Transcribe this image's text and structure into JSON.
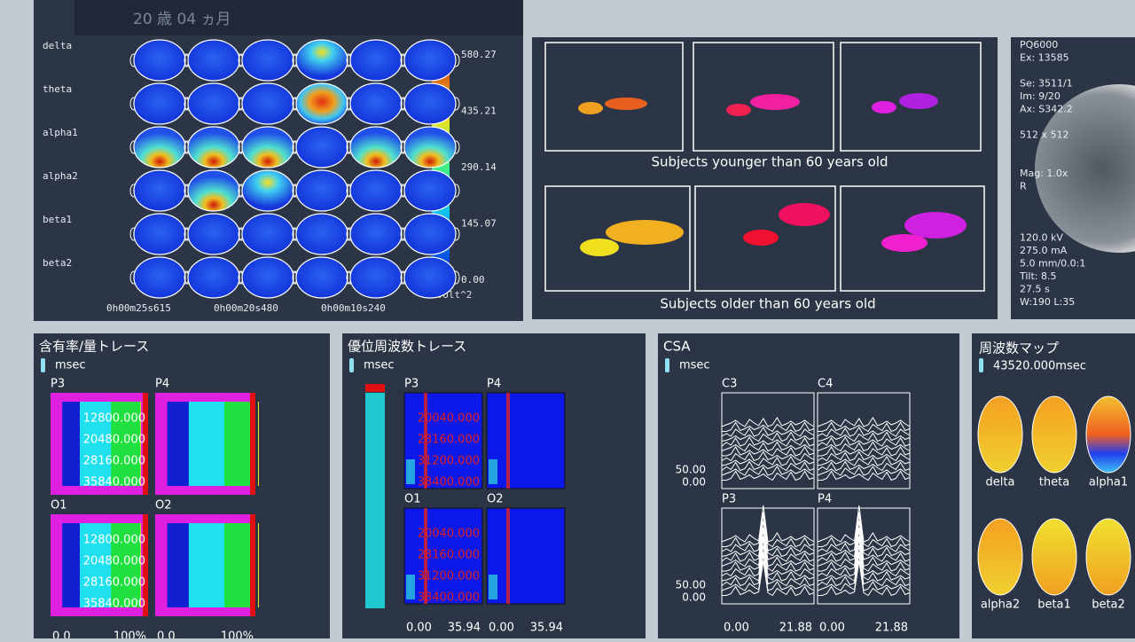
{
  "header": {
    "title": "20 歳 04 ヵ月"
  },
  "topomap": {
    "bands": [
      "delta",
      "theta",
      "alpha1",
      "alpha2",
      "beta1",
      "beta2"
    ],
    "colorbar_ticks": [
      "580.27",
      "435.21",
      "290.14",
      "145.07",
      "0.00"
    ],
    "unit": "uvolt^2",
    "times": [
      "0h00m25s615",
      "0h00m20s480",
      "0h00m10s240"
    ]
  },
  "dipole": {
    "captions": [
      "Subjects younger than 60 years old",
      "Subjects older than 60 years old"
    ]
  },
  "ct": {
    "lines": [
      "PQ6000",
      "Ex: 13585",
      "",
      "Se: 3511/1",
      "Im: 9/20",
      "Ax: S342.2",
      "",
      "512 x 512",
      "",
      "",
      "Mag: 1.0x",
      "R",
      "",
      "",
      "",
      "120.0 kV",
      "275.0 mA",
      "5.0 mm/0.0:1",
      "Tilt: 8.5",
      "27.5 s",
      "W:190  L:35"
    ]
  },
  "panels": [
    {
      "title": "含有率/量トレース",
      "unit": "msec",
      "channels": [
        "P3",
        "P4",
        "O1",
        "O2"
      ],
      "row_labels": [
        "12800.000",
        "20480.000",
        "28160.000",
        "35840.000"
      ],
      "axis": [
        "0.0",
        "100%"
      ]
    },
    {
      "title": "優位周波数トレース",
      "unit": "msec",
      "channels": [
        "P3",
        "P4",
        "O1",
        "O2"
      ],
      "row_labels": [
        "20040.000",
        "28160.000",
        "31200.000",
        "38400.000"
      ],
      "axis": [
        "0.00",
        "35.94"
      ]
    },
    {
      "title": "CSA",
      "unit": "msec",
      "channels": [
        "C3",
        "C4",
        "P3",
        "P4"
      ],
      "row_labels": [
        "50.00",
        "0.00"
      ],
      "axis": [
        "0.00",
        "21.88"
      ]
    }
  ],
  "freqmap": {
    "title": "周波数マップ",
    "time": "43520.000msec",
    "bands": [
      "delta",
      "theta",
      "alpha1",
      "alpha2",
      "beta1",
      "beta2"
    ]
  }
}
